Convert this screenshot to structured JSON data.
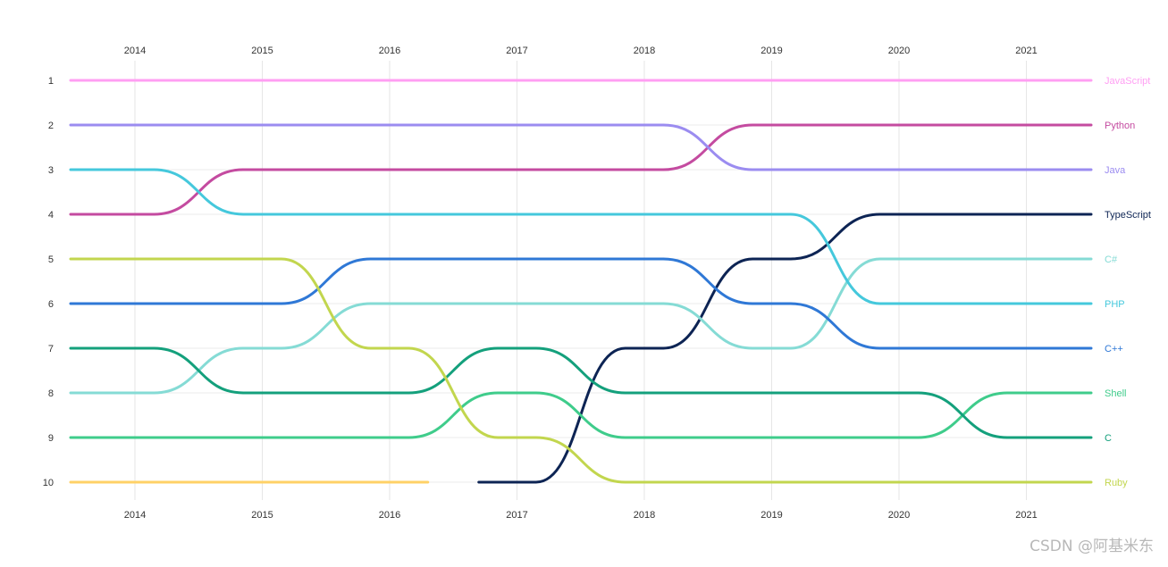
{
  "chart_data": {
    "type": "line",
    "subtype": "bump",
    "years": [
      "2014",
      "2015",
      "2016",
      "2017",
      "2018",
      "2019",
      "2020",
      "2021"
    ],
    "ranks": [
      "1",
      "2",
      "3",
      "4",
      "5",
      "6",
      "7",
      "8",
      "9",
      "10"
    ],
    "ylim": [
      1,
      10
    ],
    "y_inverted": true,
    "grid": true,
    "legend": "right",
    "series": [
      {
        "name": "JavaScript",
        "color": "#ff9ff3",
        "ranks": [
          1,
          1,
          1,
          1,
          1,
          1,
          1,
          1
        ]
      },
      {
        "name": "Python",
        "color": "#c44ba0",
        "ranks": [
          4,
          3,
          3,
          3,
          3,
          2,
          2,
          2
        ]
      },
      {
        "name": "Java",
        "color": "#9b8cf0",
        "ranks": [
          2,
          2,
          2,
          2,
          2,
          3,
          3,
          3
        ]
      },
      {
        "name": "TypeScript",
        "color": "#0d2454",
        "ranks": [
          null,
          null,
          null,
          10,
          7,
          5,
          4,
          4
        ]
      },
      {
        "name": "C#",
        "color": "#85dbd5",
        "ranks": [
          8,
          7,
          6,
          6,
          6,
          7,
          5,
          5
        ]
      },
      {
        "name": "PHP",
        "color": "#45c8dc",
        "ranks": [
          3,
          4,
          4,
          4,
          4,
          4,
          6,
          6
        ]
      },
      {
        "name": "C++",
        "color": "#2f78d6",
        "ranks": [
          6,
          6,
          5,
          5,
          5,
          6,
          7,
          7
        ]
      },
      {
        "name": "Shell",
        "color": "#3fcc8b",
        "ranks": [
          9,
          9,
          9,
          8,
          9,
          9,
          9,
          8
        ]
      },
      {
        "name": "C",
        "color": "#14a07c",
        "ranks": [
          7,
          8,
          8,
          7,
          8,
          8,
          8,
          9
        ]
      },
      {
        "name": "Ruby",
        "color": "#c2d64e",
        "ranks": [
          5,
          5,
          7,
          9,
          10,
          10,
          10,
          10
        ]
      },
      {
        "name": "",
        "color": "#ffd166",
        "ranks": [
          10,
          10,
          10,
          null,
          null,
          null,
          null,
          null
        ]
      }
    ]
  },
  "watermark": "CSDN @阿基米东"
}
